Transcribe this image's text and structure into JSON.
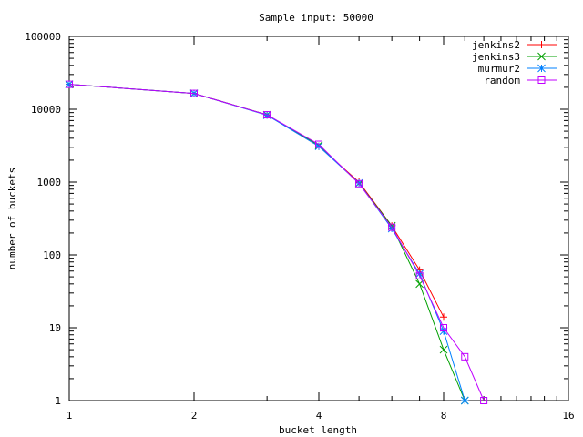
{
  "chart_data": {
    "type": "line",
    "title": "Sample input: 50000",
    "xlabel": "bucket length",
    "ylabel": "number of buckets",
    "x_scale": "log2",
    "y_scale": "log10",
    "xlim": [
      1,
      16
    ],
    "ylim": [
      1,
      100000
    ],
    "x_ticks": [
      1,
      2,
      4,
      8,
      16
    ],
    "x_tick_labels": [
      "1",
      "2",
      "4",
      "8",
      "16"
    ],
    "y_ticks": [
      1,
      10,
      100,
      1000,
      10000,
      100000
    ],
    "y_tick_labels": [
      "1",
      "10",
      "100",
      "1000",
      "10000",
      "100000"
    ],
    "grid": false,
    "legend_position": "top-right",
    "series": [
      {
        "name": "jenkins2",
        "color": "#ff0000",
        "marker": "plus",
        "x": [
          1,
          2,
          3,
          4,
          5,
          6,
          7,
          8
        ],
        "y": [
          22000,
          16500,
          8400,
          3100,
          1000,
          250,
          62,
          14
        ]
      },
      {
        "name": "jenkins3",
        "color": "#00a000",
        "marker": "cross",
        "x": [
          1,
          2,
          3,
          4,
          5,
          6,
          7,
          8,
          9
        ],
        "y": [
          22000,
          16500,
          8400,
          3200,
          960,
          250,
          40,
          5,
          1
        ]
      },
      {
        "name": "murmur2",
        "color": "#0080ff",
        "marker": "star",
        "x": [
          1,
          2,
          3,
          4,
          5,
          6,
          7,
          8,
          9
        ],
        "y": [
          22000,
          16500,
          8300,
          3100,
          970,
          230,
          55,
          9,
          1
        ]
      },
      {
        "name": "random",
        "color": "#c000ff",
        "marker": "square",
        "x": [
          1,
          2,
          3,
          4,
          5,
          6,
          7,
          8,
          9,
          10
        ],
        "y": [
          22000,
          16500,
          8400,
          3300,
          950,
          240,
          52,
          10,
          4,
          1
        ]
      }
    ]
  }
}
